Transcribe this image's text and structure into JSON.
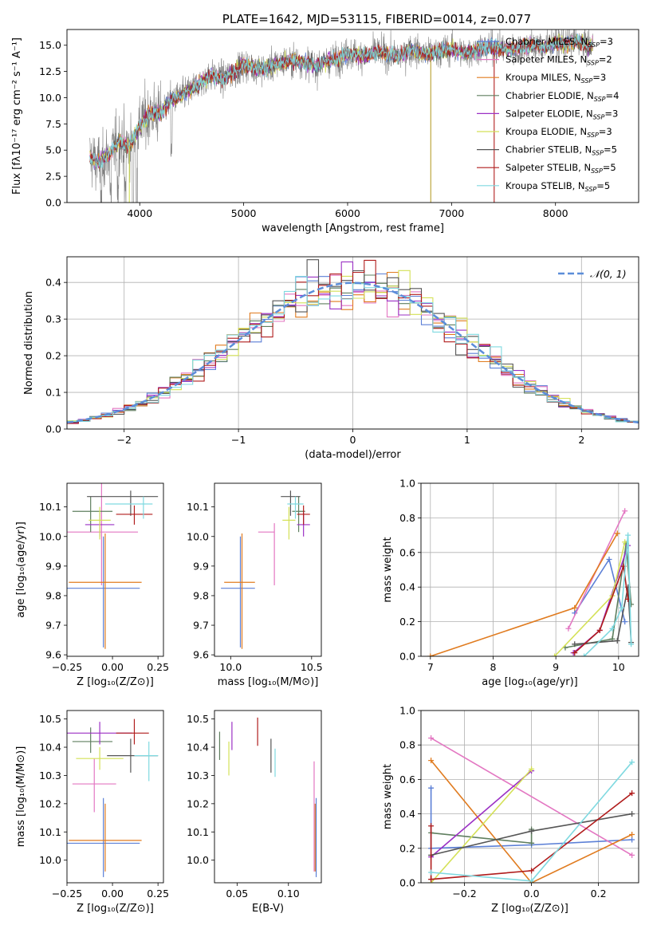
{
  "chart_data": [
    {
      "id": "spectrum",
      "type": "line",
      "title": "PLATE=1642, MJD=53115, FIBERID=0014, z=0.077",
      "xlabel": "wavelength [Angstrom, rest frame]",
      "ylabel": "Flux [fλ10⁻¹⁷ erg cm⁻² s⁻¹ A⁻¹]",
      "xlim": [
        3300,
        8800
      ],
      "ylim": [
        0,
        16.5
      ],
      "xticks": [
        4000,
        5000,
        6000,
        7000,
        8000
      ],
      "yticks": [
        0.0,
        2.5,
        5.0,
        7.5,
        10.0,
        12.5,
        15.0
      ],
      "ytick_labels": [
        "0.0",
        "2.5",
        "5.0",
        "7.5",
        "10.0",
        "12.5",
        "15.0"
      ],
      "legend": [
        {
          "label": "Chabrier MILES, N_SSP=3",
          "color": "#5b7fd6"
        },
        {
          "label": "Salpeter MILES, N_SSP=2",
          "color": "#e377c2"
        },
        {
          "label": "Kroupa MILES, N_SSP=3",
          "color": "#e07b1f"
        },
        {
          "label": "Chabrier ELODIE, N_SSP=4",
          "color": "#5f7f5f"
        },
        {
          "label": "Salpeter ELODIE, N_SSP=3",
          "color": "#9b30c4"
        },
        {
          "label": "Kroupa ELODIE, N_SSP=3",
          "color": "#d4e157"
        },
        {
          "label": "Chabrier STELIB, N_SSP=5",
          "color": "#555555"
        },
        {
          "label": "Salpeter STELIB, N_SSP=5",
          "color": "#b01c1c"
        },
        {
          "label": "Kroupa STELIB, N_SSP=5",
          "color": "#7fd9e0"
        }
      ],
      "legend_position": "right",
      "model_envelope": {
        "x": [
          3520,
          3600,
          3700,
          3800,
          3900,
          4000,
          4100,
          4200,
          4300,
          4400,
          4500,
          4600,
          4700,
          4800,
          4900,
          5000,
          5100,
          5200,
          5300,
          5400,
          5500,
          5600,
          5700,
          5800,
          5900,
          6000,
          6100,
          6200,
          6300,
          6400,
          6500,
          6600,
          6700,
          6800,
          6900,
          7000,
          7100,
          7200,
          7300,
          7400,
          7500,
          7600,
          7700,
          7800,
          7900,
          8000,
          8100,
          8200,
          8300
        ],
        "y": [
          4.3,
          3.8,
          4.6,
          5.8,
          5.4,
          7.3,
          8.6,
          8.4,
          9.8,
          10.2,
          10.8,
          11.6,
          12.1,
          11.8,
          12.4,
          13.1,
          12.9,
          12.7,
          13.2,
          13.4,
          13.6,
          13.3,
          13.0,
          13.5,
          13.7,
          14.2,
          14.1,
          14.0,
          14.4,
          14.1,
          13.9,
          14.6,
          14.3,
          14.2,
          14.5,
          14.6,
          14.3,
          14.4,
          14.8,
          14.9,
          14.6,
          14.7,
          14.9,
          15.0,
          14.8,
          15.3,
          15.1,
          15.4,
          15.0
        ]
      }
    },
    {
      "id": "residuals",
      "type": "histogram",
      "xlabel": "(data-model)/error",
      "ylabel": "Normed distribution",
      "xlim": [
        -2.5,
        2.5
      ],
      "ylim": [
        0,
        0.47
      ],
      "xticks": [
        -2,
        -1,
        0,
        1,
        2
      ],
      "xtick_labels": [
        "−2",
        "−1",
        "0",
        "1",
        "2"
      ],
      "yticks": [
        0.0,
        0.1,
        0.2,
        0.3,
        0.4
      ],
      "ytick_labels": [
        "0.0",
        "0.1",
        "0.2",
        "0.3",
        "0.4"
      ],
      "legend": [
        {
          "label": "𝒩(0, 1)",
          "color": "#5b8dd9",
          "style": "dashed"
        }
      ],
      "legend_position": "top-right",
      "bin_width": 0.1,
      "curve": "normal(0,1)"
    },
    {
      "id": "age_vs_Z",
      "type": "errorbar",
      "xlabel": "Z [log₁₀(Z/Z⊙)]",
      "ylabel": "age  [log₁₀(age/yr)]",
      "xlim": [
        -0.25,
        0.28
      ],
      "ylim": [
        9.595,
        10.18
      ],
      "xticks": [
        -0.25,
        0.0,
        0.25
      ],
      "xtick_labels": [
        "−0.25",
        "0.00",
        "0.25"
      ],
      "yticks": [
        9.6,
        9.7,
        9.8,
        9.9,
        10.0,
        10.1
      ],
      "ytick_labels": [
        "9.6",
        "9.7",
        "9.8",
        "9.9",
        "10.0",
        "10.1"
      ],
      "points": [
        {
          "x": -0.05,
          "xerr": [
            0.2,
            0.2
          ],
          "y": 9.825,
          "yerr": [
            0.2,
            0.175
          ],
          "color": "#5b7fd6"
        },
        {
          "x": -0.06,
          "xerr": [
            0.2,
            0.2
          ],
          "y": 10.015,
          "yerr": [
            0.18,
            0.175
          ],
          "color": "#e377c2"
        },
        {
          "x": -0.04,
          "xerr": [
            0.2,
            0.2
          ],
          "y": 9.845,
          "yerr": [
            0.225,
            0.165
          ],
          "color": "#e07b1f"
        },
        {
          "x": -0.12,
          "xerr": [
            0.1,
            0.12
          ],
          "y": 10.085,
          "yerr": [
            0.07,
            0.05
          ],
          "color": "#5f7f5f"
        },
        {
          "x": -0.07,
          "xerr": [
            0.08,
            0.08
          ],
          "y": 10.04,
          "yerr": [
            0.04,
            0.04
          ],
          "color": "#9b30c4"
        },
        {
          "x": -0.07,
          "xerr": [
            0.06,
            0.06
          ],
          "y": 10.055,
          "yerr": [
            0.065,
            0.045
          ],
          "color": "#d4e157"
        },
        {
          "x": 0.1,
          "xerr": [
            0.24,
            0.15
          ],
          "y": 10.135,
          "yerr": [
            0.065,
            0.02
          ],
          "color": "#555555"
        },
        {
          "x": 0.12,
          "xerr": [
            0.1,
            0.1
          ],
          "y": 10.075,
          "yerr": [
            0.035,
            0.03
          ],
          "color": "#b01c1c"
        },
        {
          "x": 0.17,
          "xerr": [
            0.21,
            0.05
          ],
          "y": 10.11,
          "yerr": [
            0.05,
            0.025
          ],
          "color": "#7fd9e0"
        }
      ]
    },
    {
      "id": "age_vs_mass",
      "type": "errorbar",
      "xlabel": "mass [log₁₀(M/M⊙)]",
      "xlim": [
        9.9,
        10.56
      ],
      "ylim": [
        9.595,
        10.18
      ],
      "xticks": [
        10.0,
        10.5
      ],
      "xtick_labels": [
        "10.0",
        "10.5"
      ],
      "yticks": [
        9.6,
        9.7,
        9.8,
        9.9,
        10.0,
        10.1
      ],
      "ytick_labels": [
        "9.6",
        "9.7",
        "9.8",
        "9.9",
        "10.0",
        "10.1"
      ],
      "points": [
        {
          "x": 10.06,
          "xerr": [
            0.12,
            0.09
          ],
          "y": 9.825,
          "yerr": [
            0.2,
            0.175
          ],
          "color": "#5b7fd6"
        },
        {
          "x": 10.27,
          "xerr": [
            0.1,
            0.0
          ],
          "y": 10.015,
          "yerr": [
            0.18,
            0.03
          ],
          "color": "#e377c2"
        },
        {
          "x": 10.07,
          "xerr": [
            0.11,
            0.08
          ],
          "y": 9.845,
          "yerr": [
            0.225,
            0.165
          ],
          "color": "#e07b1f"
        },
        {
          "x": 10.42,
          "xerr": [
            0.04,
            0.04
          ],
          "y": 10.085,
          "yerr": [
            0.07,
            0.05
          ],
          "color": "#5f7f5f"
        },
        {
          "x": 10.45,
          "xerr": [
            0.04,
            0.04
          ],
          "y": 10.04,
          "yerr": [
            0.04,
            0.04
          ],
          "color": "#9b30c4"
        },
        {
          "x": 10.36,
          "xerr": [
            0.04,
            0.04
          ],
          "y": 10.055,
          "yerr": [
            0.065,
            0.045
          ],
          "color": "#d4e157"
        },
        {
          "x": 10.37,
          "xerr": [
            0.06,
            0.06
          ],
          "y": 10.135,
          "yerr": [
            0.065,
            0.02
          ],
          "color": "#555555"
        },
        {
          "x": 10.45,
          "xerr": [
            0.04,
            0.04
          ],
          "y": 10.075,
          "yerr": [
            0.035,
            0.03
          ],
          "color": "#b01c1c"
        },
        {
          "x": 10.4,
          "xerr": [
            0.05,
            0.05
          ],
          "y": 10.11,
          "yerr": [
            0.05,
            0.025
          ],
          "color": "#7fd9e0"
        }
      ]
    },
    {
      "id": "weight_vs_age",
      "type": "line",
      "xlabel": "age  [log₁₀(age/yr)]",
      "ylabel": "mass weight",
      "xlim": [
        6.85,
        10.32
      ],
      "ylim": [
        0,
        1
      ],
      "grid": true,
      "xticks": [
        7,
        8,
        9,
        10
      ],
      "xtick_labels": [
        "7",
        "8",
        "9",
        "10"
      ],
      "yticks": [
        0.0,
        0.2,
        0.4,
        0.6,
        0.8,
        1.0
      ],
      "ytick_labels": [
        "0.0",
        "0.2",
        "0.4",
        "0.6",
        "0.8",
        "1.0"
      ],
      "series": [
        {
          "color": "#5b7fd6",
          "x": [
            9.3,
            9.85,
            10.1
          ],
          "y": [
            0.25,
            0.56,
            0.2
          ]
        },
        {
          "color": "#e377c2",
          "x": [
            9.2,
            10.1
          ],
          "y": [
            0.16,
            0.84
          ]
        },
        {
          "color": "#e07b1f",
          "x": [
            7.0,
            9.3,
            9.98
          ],
          "y": [
            0.0,
            0.28,
            0.71
          ]
        },
        {
          "color": "#5f7f5f",
          "x": [
            9.15,
            9.9,
            10.12,
            10.2
          ],
          "y": [
            0.05,
            0.1,
            0.65,
            0.3
          ]
        },
        {
          "color": "#9b30c4",
          "x": [
            9.28,
            9.7,
            10.15
          ],
          "y": [
            0.02,
            0.15,
            0.64
          ]
        },
        {
          "color": "#d4e157",
          "x": [
            8.98,
            9.9,
            10.1
          ],
          "y": [
            0.0,
            0.35,
            0.66
          ]
        },
        {
          "color": "#555555",
          "x": [
            9.3,
            9.98,
            10.15,
            10.2
          ],
          "y": [
            0.07,
            0.09,
            0.4,
            0.08
          ]
        },
        {
          "color": "#b01c1c",
          "x": [
            9.3,
            9.7,
            10.08,
            10.15
          ],
          "y": [
            0.02,
            0.15,
            0.52,
            0.33
          ]
        },
        {
          "color": "#7fd9e0",
          "x": [
            9.45,
            9.9,
            10.05,
            10.15,
            10.2
          ],
          "y": [
            0.0,
            0.16,
            0.28,
            0.7,
            0.07
          ]
        }
      ]
    },
    {
      "id": "mass_vs_Z",
      "type": "errorbar",
      "xlabel": "Z [log₁₀(Z/Z⊙)]",
      "ylabel": "mass [log₁₀(M/M⊙)]",
      "xlim": [
        -0.25,
        0.28
      ],
      "ylim": [
        9.92,
        10.53
      ],
      "xticks": [
        -0.25,
        0.0,
        0.25
      ],
      "xtick_labels": [
        "−0.25",
        "0.00",
        "0.25"
      ],
      "yticks": [
        10.0,
        10.1,
        10.2,
        10.3,
        10.4,
        10.5
      ],
      "ytick_labels": [
        "10.0",
        "10.1",
        "10.2",
        "10.3",
        "10.4",
        "10.5"
      ],
      "points": [
        {
          "x": -0.05,
          "xerr": [
            0.2,
            0.2
          ],
          "y": 10.06,
          "yerr": [
            0.12,
            0.16
          ],
          "color": "#5b7fd6"
        },
        {
          "x": -0.1,
          "xerr": [
            0.12,
            0.12
          ],
          "y": 10.27,
          "yerr": [
            0.1,
            0.09
          ],
          "color": "#e377c2"
        },
        {
          "x": -0.04,
          "xerr": [
            0.2,
            0.2
          ],
          "y": 10.07,
          "yerr": [
            0.11,
            0.13
          ],
          "color": "#e07b1f"
        },
        {
          "x": -0.12,
          "xerr": [
            0.1,
            0.12
          ],
          "y": 10.42,
          "yerr": [
            0.04,
            0.05
          ],
          "color": "#5f7f5f"
        },
        {
          "x": -0.07,
          "xerr": [
            0.18,
            0.18
          ],
          "y": 10.45,
          "yerr": [
            0.04,
            0.04
          ],
          "color": "#9b30c4"
        },
        {
          "x": -0.07,
          "xerr": [
            0.13,
            0.13
          ],
          "y": 10.36,
          "yerr": [
            0.04,
            0.04
          ],
          "color": "#d4e157"
        },
        {
          "x": 0.1,
          "xerr": [
            0.13,
            0.15
          ],
          "y": 10.37,
          "yerr": [
            0.06,
            0.06
          ],
          "color": "#555555"
        },
        {
          "x": 0.12,
          "xerr": [
            0.1,
            0.08
          ],
          "y": 10.45,
          "yerr": [
            0.04,
            0.05
          ],
          "color": "#b01c1c"
        },
        {
          "x": 0.2,
          "xerr": [
            0.08,
            0.05
          ],
          "y": 10.37,
          "yerr": [
            0.09,
            0.05
          ],
          "color": "#7fd9e0"
        }
      ]
    },
    {
      "id": "mass_vs_ebv",
      "type": "errorbar",
      "xlabel": "E(B-V)",
      "xlim": [
        0.028,
        0.132
      ],
      "ylim": [
        9.92,
        10.53
      ],
      "xticks": [
        0.05,
        0.1
      ],
      "xtick_labels": [
        "0.05",
        "0.10"
      ],
      "yticks": [
        10.0,
        10.1,
        10.2,
        10.3,
        10.4,
        10.5
      ],
      "ytick_labels": [
        "10.0",
        "10.1",
        "10.2",
        "10.3",
        "10.4",
        "10.5"
      ],
      "points": [
        {
          "x": 0.127,
          "y": 10.06,
          "yerr": [
            0.12,
            0.16
          ],
          "color": "#5b7fd6"
        },
        {
          "x": 0.125,
          "y": 10.2,
          "yerr": [
            0.24,
            0.15
          ],
          "color": "#e377c2"
        },
        {
          "x": 0.126,
          "y": 10.07,
          "yerr": [
            0.11,
            0.13
          ],
          "color": "#e07b1f"
        },
        {
          "x": 0.033,
          "y": 10.405,
          "yerr": [
            0.05,
            0.05
          ],
          "color": "#5f7f5f"
        },
        {
          "x": 0.045,
          "y": 10.43,
          "yerr": [
            0.04,
            0.06
          ],
          "color": "#9b30c4"
        },
        {
          "x": 0.042,
          "y": 10.36,
          "yerr": [
            0.06,
            0.06
          ],
          "color": "#d4e157"
        },
        {
          "x": 0.083,
          "y": 10.37,
          "yerr": [
            0.06,
            0.06
          ],
          "color": "#555555"
        },
        {
          "x": 0.07,
          "y": 10.455,
          "yerr": [
            0.05,
            0.05
          ],
          "color": "#b01c1c"
        },
        {
          "x": 0.087,
          "y": 10.345,
          "yerr": [
            0.05,
            0.05
          ],
          "color": "#7fd9e0"
        }
      ]
    },
    {
      "id": "weight_vs_Z",
      "type": "line",
      "xlabel": "Z [log₁₀(Z/Z⊙)]",
      "ylabel": "mass weight",
      "xlim": [
        -0.33,
        0.32
      ],
      "ylim": [
        0,
        1
      ],
      "grid": true,
      "xticks": [
        -0.2,
        0.0,
        0.2
      ],
      "xtick_labels": [
        "−0.2",
        "0.0",
        "0.2"
      ],
      "yticks": [
        0.0,
        0.2,
        0.4,
        0.6,
        0.8,
        1.0
      ],
      "ytick_labels": [
        "0.0",
        "0.2",
        "0.4",
        "0.6",
        "0.8",
        "1.0"
      ],
      "series": [
        {
          "color": "#5b7fd6",
          "x": [
            -0.3,
            -0.3,
            0.0,
            0.3
          ],
          "y": [
            0.55,
            0.2,
            0.22,
            0.25
          ]
        },
        {
          "color": "#e377c2",
          "x": [
            -0.3,
            0.3
          ],
          "y": [
            0.84,
            0.16
          ]
        },
        {
          "color": "#e07b1f",
          "x": [
            -0.3,
            0.0,
            0.3
          ],
          "y": [
            0.71,
            0.0,
            0.28
          ]
        },
        {
          "color": "#5f7f5f",
          "x": [
            -0.3,
            0.0,
            0.0
          ],
          "y": [
            0.29,
            0.23,
            0.31
          ]
        },
        {
          "color": "#9b30c4",
          "x": [
            -0.3,
            0.0
          ],
          "y": [
            0.15,
            0.65
          ]
        },
        {
          "color": "#d4e157",
          "x": [
            -0.3,
            0.0
          ],
          "y": [
            0.0,
            0.66
          ]
        },
        {
          "color": "#555555",
          "x": [
            -0.3,
            0.0,
            0.3
          ],
          "y": [
            0.16,
            0.3,
            0.4
          ]
        },
        {
          "color": "#b01c1c",
          "x": [
            -0.3,
            -0.3,
            0.0,
            0.3
          ],
          "y": [
            0.33,
            0.02,
            0.07,
            0.52
          ]
        },
        {
          "color": "#7fd9e0",
          "x": [
            -0.3,
            0.0,
            0.3
          ],
          "y": [
            0.06,
            0.01,
            0.7
          ]
        }
      ]
    }
  ]
}
